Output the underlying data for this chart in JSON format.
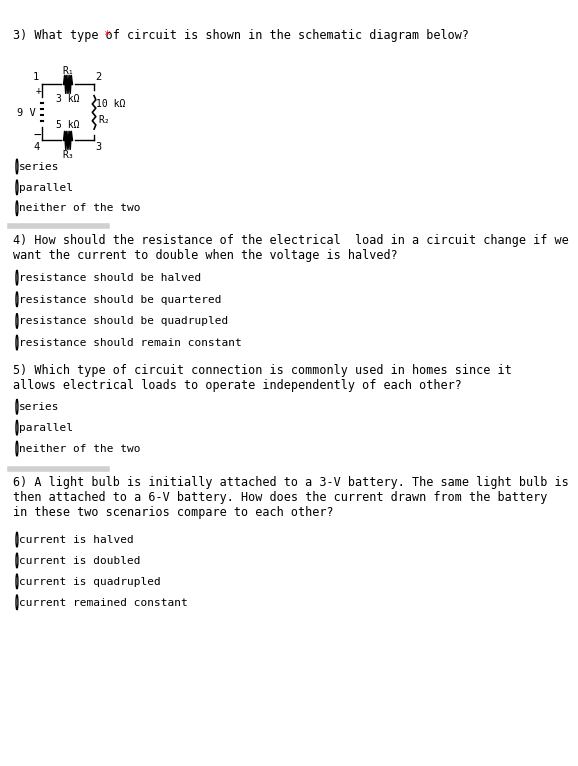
{
  "title_q3": "3) What type of circuit is shown in the schematic diagram below? *",
  "title_q4": "4) How should the resistance of the electrical  load in a circuit change if we\nwant the current to double when the voltage is halved?",
  "title_q5": "5) Which type of circuit connection is commonly used in homes since it\nallows electrical loads to operate independently of each other?",
  "title_q6": "6) A light bulb is initially attached to a 3-V battery. The same light bulb is\nthen attached to a 6-V battery. How does the current drawn from the battery\nin these two scenarios compare to each other?",
  "q3_options": [
    "series",
    "parallel",
    "neither of the two"
  ],
  "q4_options": [
    "resistance should be halved",
    "resistance should be quartered",
    "resistance should be quadrupled",
    "resistance should remain constant"
  ],
  "q5_options": [
    "series",
    "parallel",
    "neither of the two"
  ],
  "q6_options": [
    "current is halved",
    "current is doubled",
    "current is quadrupled",
    "current remained constant"
  ],
  "bg_color": "#ffffff",
  "separator_color": "#d0d0d0",
  "text_color": "#000000",
  "title_color_star": "#ff0000",
  "font_size_title": 8.5,
  "font_size_option": 8.0
}
